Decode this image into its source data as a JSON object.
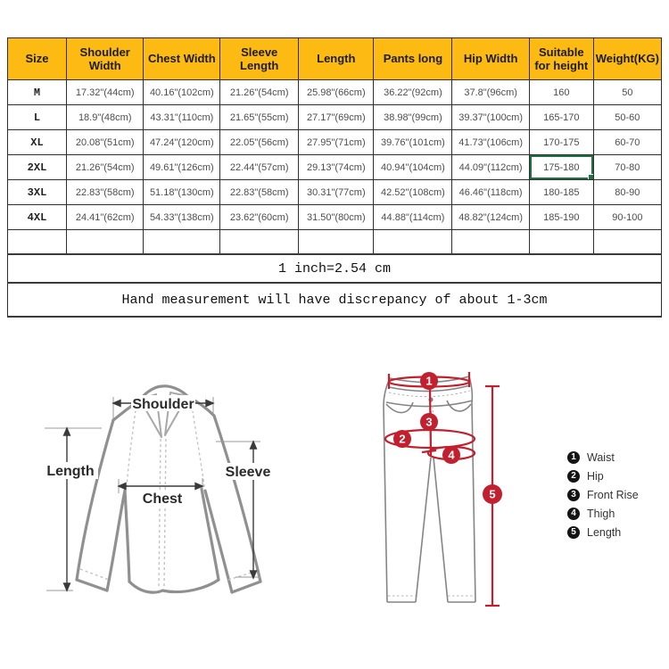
{
  "table": {
    "columns": [
      "Size",
      "Shoulder Width",
      "Chest Width",
      "Sleeve Length",
      "Length",
      "Pants long",
      "Hip Width",
      "Suitable for height",
      "Weight(KG)"
    ],
    "rows": [
      [
        "M",
        "17.32\"(44cm)",
        "40.16\"(102cm)",
        "21.26\"(54cm)",
        "25.98\"(66cm)",
        "36.22\"(92cm)",
        "37.8\"(96cm)",
        "160",
        "50"
      ],
      [
        "L",
        "18.9\"(48cm)",
        "43.31\"(110cm)",
        "21.65\"(55cm)",
        "27.17\"(69cm)",
        "38.98\"(99cm)",
        "39.37\"(100cm)",
        "165-170",
        "50-60"
      ],
      [
        "XL",
        "20.08\"(51cm)",
        "47.24\"(120cm)",
        "22.05\"(56cm)",
        "27.95\"(71cm)",
        "39.76\"(101cm)",
        "41.73\"(106cm)",
        "170-175",
        "60-70"
      ],
      [
        "2XL",
        "21.26\"(54cm)",
        "49.61\"(126cm)",
        "22.44\"(57cm)",
        "29.13\"(74cm)",
        "40.94\"(104cm)",
        "44.09\"(112cm)",
        "175-180",
        "70-80"
      ],
      [
        "3XL",
        "22.83\"(58cm)",
        "51.18\"(130cm)",
        "22.83\"(58cm)",
        "30.31\"(77cm)",
        "42.52\"(108cm)",
        "46.46\"(118cm)",
        "180-185",
        "80-90"
      ],
      [
        "4XL",
        "24.41\"(62cm)",
        "54.33\"(138cm)",
        "23.62\"(60cm)",
        "31.50\"(80cm)",
        "44.88\"(114cm)",
        "48.82\"(124cm)",
        "185-190",
        "90-100"
      ]
    ],
    "selected_cell": {
      "row": 3,
      "col": 7
    },
    "note_inch": "1 inch=2.54 cm",
    "note_measure": "Hand measurement will have discrepancy of about 1-3cm",
    "header_bg": "#fcba12",
    "selection_color": "#1e7145"
  },
  "shirt_diagram": {
    "labels": {
      "shoulder": "Shoulder",
      "length": "Length",
      "sleeve": "Sleeve",
      "chest": "Chest"
    }
  },
  "pants_diagram": {
    "markers": [
      "1",
      "2",
      "3",
      "4",
      "5"
    ],
    "accent": "#c2202e"
  },
  "legend": {
    "items": [
      {
        "num": "1",
        "label": "Waist"
      },
      {
        "num": "2",
        "label": "Hip"
      },
      {
        "num": "3",
        "label": "Front Rise"
      },
      {
        "num": "4",
        "label": "Thigh"
      },
      {
        "num": "5",
        "label": "Length"
      }
    ]
  }
}
